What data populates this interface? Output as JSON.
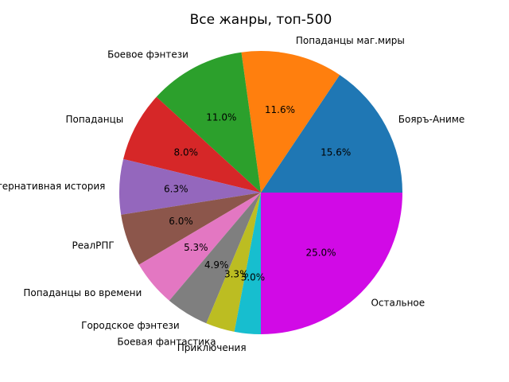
{
  "chart_data": {
    "type": "pie",
    "title": "Все жанры, топ-500",
    "start_angle_deg": 0,
    "direction": "counterclockwise",
    "slices": [
      {
        "label": "Бояръ-Аниме",
        "value": 15.6,
        "pct_text": "15.6%",
        "color": "#1f77b4"
      },
      {
        "label": "Попаданцы маг.миры",
        "value": 11.6,
        "pct_text": "11.6%",
        "color": "#ff7f0e"
      },
      {
        "label": "Боевое фэнтези",
        "value": 11.0,
        "pct_text": "11.0%",
        "color": "#2ca02c"
      },
      {
        "label": "Попаданцы",
        "value": 8.0,
        "pct_text": "8.0%",
        "color": "#d62728"
      },
      {
        "label": "Альтернативная история",
        "value": 6.3,
        "pct_text": "6.3%",
        "color": "#9467bd"
      },
      {
        "label": "РеалРПГ",
        "value": 6.0,
        "pct_text": "6.0%",
        "color": "#8c564b"
      },
      {
        "label": "Попаданцы во времени",
        "value": 5.3,
        "pct_text": "5.3%",
        "color": "#e377c2"
      },
      {
        "label": "Городское фэнтези",
        "value": 4.9,
        "pct_text": "4.9%",
        "color": "#7f7f7f"
      },
      {
        "label": "Боевая фантастика",
        "value": 3.3,
        "pct_text": "3.3%",
        "color": "#bcbd22"
      },
      {
        "label": "Приключения",
        "value": 3.0,
        "pct_text": "3.0%",
        "color": "#17becf"
      },
      {
        "label": "Остальное",
        "value": 25.0,
        "pct_text": "25.0%",
        "color": "#d10ae6"
      }
    ]
  }
}
